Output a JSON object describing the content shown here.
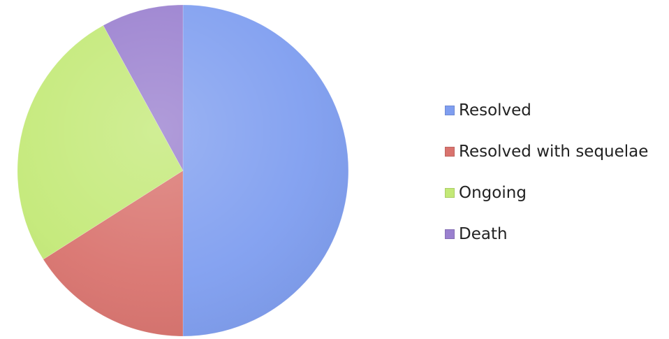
{
  "chart_data": {
    "type": "pie",
    "title": "",
    "legend_position": "right",
    "slices": [
      {
        "label": "Resolved",
        "value": 50,
        "color": "#7f9ef0"
      },
      {
        "label": "Resolved with sequelae",
        "value": 16,
        "color": "#d9736e"
      },
      {
        "label": "Ongoing",
        "value": 26,
        "color": "#c3e977"
      },
      {
        "label": "Death",
        "value": 8,
        "color": "#9a80cf"
      }
    ]
  }
}
